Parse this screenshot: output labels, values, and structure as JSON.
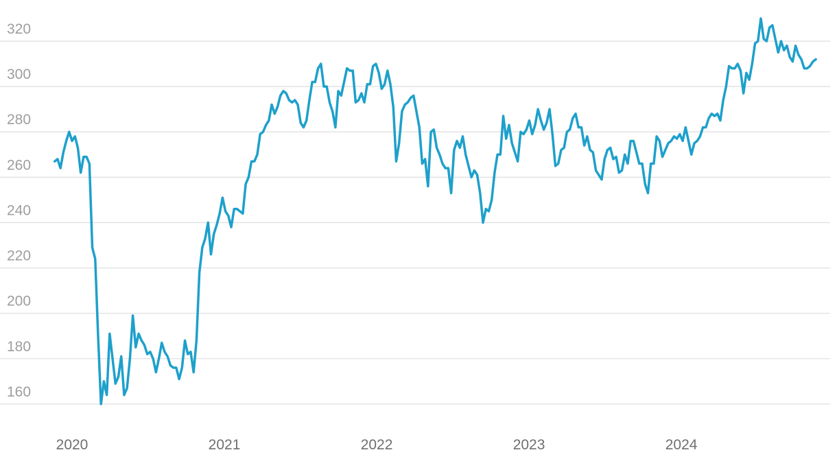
{
  "chart_data": {
    "type": "line",
    "color": "#1ea0cb",
    "grid": true,
    "xlim": [
      2019.527,
      2024.977
    ],
    "xticks": [
      2020,
      2021,
      2022,
      2023,
      2024
    ],
    "ylim": [
      150,
      335
    ],
    "yticks": [
      160,
      180,
      200,
      220,
      240,
      260,
      280,
      300,
      320
    ],
    "x": [
      2019.886,
      2019.905,
      2019.924,
      2019.943,
      2019.962,
      2019.981,
      2020,
      2020.019,
      2020.038,
      2020.057,
      2020.076,
      2020.095,
      2020.114,
      2020.133,
      2020.152,
      2020.171,
      2020.19,
      2020.209,
      2020.228,
      2020.247,
      2020.266,
      2020.285,
      2020.304,
      2020.323,
      2020.342,
      2020.361,
      2020.38,
      2020.399,
      2020.418,
      2020.437,
      2020.456,
      2020.475,
      2020.494,
      2020.513,
      2020.532,
      2020.551,
      2020.57,
      2020.589,
      2020.608,
      2020.627,
      2020.646,
      2020.665,
      2020.684,
      2020.703,
      2020.722,
      2020.741,
      2020.76,
      2020.779,
      2020.798,
      2020.817,
      2020.836,
      2020.855,
      2020.874,
      2020.893,
      2020.912,
      2020.931,
      2020.95,
      2020.969,
      2020.988,
      2021.007,
      2021.026,
      2021.045,
      2021.064,
      2021.083,
      2021.102,
      2021.121,
      2021.14,
      2021.159,
      2021.178,
      2021.197,
      2021.216,
      2021.235,
      2021.254,
      2021.273,
      2021.292,
      2021.311,
      2021.33,
      2021.349,
      2021.368,
      2021.387,
      2021.406,
      2021.425,
      2021.444,
      2021.463,
      2021.482,
      2021.501,
      2021.52,
      2021.539,
      2021.558,
      2021.577,
      2021.596,
      2021.615,
      2021.634,
      2021.653,
      2021.672,
      2021.691,
      2021.71,
      2021.729,
      2021.748,
      2021.767,
      2021.786,
      2021.805,
      2021.824,
      2021.843,
      2021.862,
      2021.881,
      2021.9,
      2021.919,
      2021.938,
      2021.957,
      2021.976,
      2021.995,
      2022.014,
      2022.033,
      2022.052,
      2022.071,
      2022.09,
      2022.109,
      2022.128,
      2022.147,
      2022.166,
      2022.185,
      2022.204,
      2022.223,
      2022.242,
      2022.261,
      2022.28,
      2022.299,
      2022.318,
      2022.337,
      2022.356,
      2022.375,
      2022.394,
      2022.413,
      2022.432,
      2022.451,
      2022.47,
      2022.489,
      2022.508,
      2022.527,
      2022.546,
      2022.565,
      2022.584,
      2022.603,
      2022.622,
      2022.641,
      2022.66,
      2022.679,
      2022.698,
      2022.717,
      2022.736,
      2022.755,
      2022.774,
      2022.793,
      2022.812,
      2022.831,
      2022.85,
      2022.869,
      2022.888,
      2022.907,
      2022.926,
      2022.945,
      2022.964,
      2022.983,
      2023.002,
      2023.021,
      2023.04,
      2023.059,
      2023.078,
      2023.097,
      2023.116,
      2023.135,
      2023.154,
      2023.173,
      2023.192,
      2023.211,
      2023.23,
      2023.249,
      2023.268,
      2023.287,
      2023.306,
      2023.325,
      2023.344,
      2023.363,
      2023.382,
      2023.401,
      2023.42,
      2023.439,
      2023.458,
      2023.477,
      2023.496,
      2023.515,
      2023.534,
      2023.553,
      2023.572,
      2023.591,
      2023.61,
      2023.629,
      2023.648,
      2023.667,
      2023.686,
      2023.705,
      2023.724,
      2023.743,
      2023.762,
      2023.781,
      2023.8,
      2023.819,
      2023.838,
      2023.857,
      2023.876,
      2023.895,
      2023.914,
      2023.933,
      2023.952,
      2023.971,
      2023.99,
      2024.009,
      2024.028,
      2024.047,
      2024.066,
      2024.085,
      2024.104,
      2024.123,
      2024.142,
      2024.161,
      2024.18,
      2024.199,
      2024.218,
      2024.237,
      2024.256,
      2024.275,
      2024.294,
      2024.313,
      2024.332,
      2024.351,
      2024.37,
      2024.389,
      2024.408,
      2024.427,
      2024.446,
      2024.465,
      2024.484,
      2024.503,
      2024.522,
      2024.541,
      2024.56,
      2024.579,
      2024.598,
      2024.617,
      2024.636,
      2024.655,
      2024.674,
      2024.693,
      2024.712,
      2024.731,
      2024.75,
      2024.769,
      2024.788,
      2024.807,
      2024.826,
      2024.845,
      2024.864,
      2024.883
    ],
    "values": [
      267,
      268,
      264,
      271,
      276,
      280,
      276,
      278,
      273,
      262,
      269,
      269,
      266,
      229,
      224,
      190,
      160,
      170,
      164,
      191,
      180,
      169,
      172,
      181,
      164,
      167,
      180,
      199,
      185,
      191,
      188,
      186,
      182,
      183,
      180,
      174,
      180,
      187,
      183,
      181,
      177,
      176,
      176,
      171,
      176,
      188,
      182,
      183,
      174,
      188,
      218,
      229,
      233,
      240,
      226,
      235,
      239,
      244,
      251,
      245,
      243,
      238,
      246,
      246,
      245,
      244,
      257,
      260,
      267,
      267,
      270,
      279,
      280,
      283,
      285,
      292,
      288,
      291,
      296,
      298,
      297,
      294,
      293,
      294,
      292,
      284,
      282,
      285,
      294,
      302,
      302,
      308,
      310,
      300,
      300,
      293,
      289,
      282,
      298,
      296,
      302,
      308,
      307,
      307,
      293,
      294,
      297,
      293,
      301,
      301,
      309,
      310,
      306,
      299,
      301,
      307,
      301,
      291,
      267,
      275,
      289,
      292,
      293,
      295,
      296,
      289,
      282,
      266,
      268,
      256,
      280,
      281,
      273,
      270,
      266,
      264,
      264,
      253,
      272,
      276,
      273,
      278,
      270,
      265,
      260,
      263,
      261,
      253,
      240,
      246,
      245,
      250,
      262,
      270,
      270,
      287,
      277,
      283,
      275,
      271,
      267,
      280,
      279,
      281,
      285,
      279,
      283,
      290,
      285,
      281,
      284,
      290,
      279,
      265,
      266,
      272,
      273,
      280,
      281,
      286,
      288,
      282,
      282,
      274,
      278,
      272,
      271,
      263,
      261,
      259,
      268,
      272,
      273,
      268,
      269,
      262,
      263,
      270,
      266,
      276,
      276,
      271,
      266,
      266,
      257,
      253,
      266,
      266,
      278,
      276,
      269,
      272,
      275,
      276,
      278,
      277,
      279,
      276,
      282,
      276,
      270,
      275,
      276,
      278,
      282,
      282,
      286,
      288,
      287,
      288,
      285,
      294,
      300,
      309,
      308,
      308,
      310,
      307,
      297,
      306,
      303,
      310,
      319,
      320,
      330,
      321,
      320,
      326,
      327,
      321,
      315,
      320,
      316,
      318,
      313,
      311,
      318,
      314,
      312,
      308,
      308,
      309,
      311,
      312
    ]
  }
}
